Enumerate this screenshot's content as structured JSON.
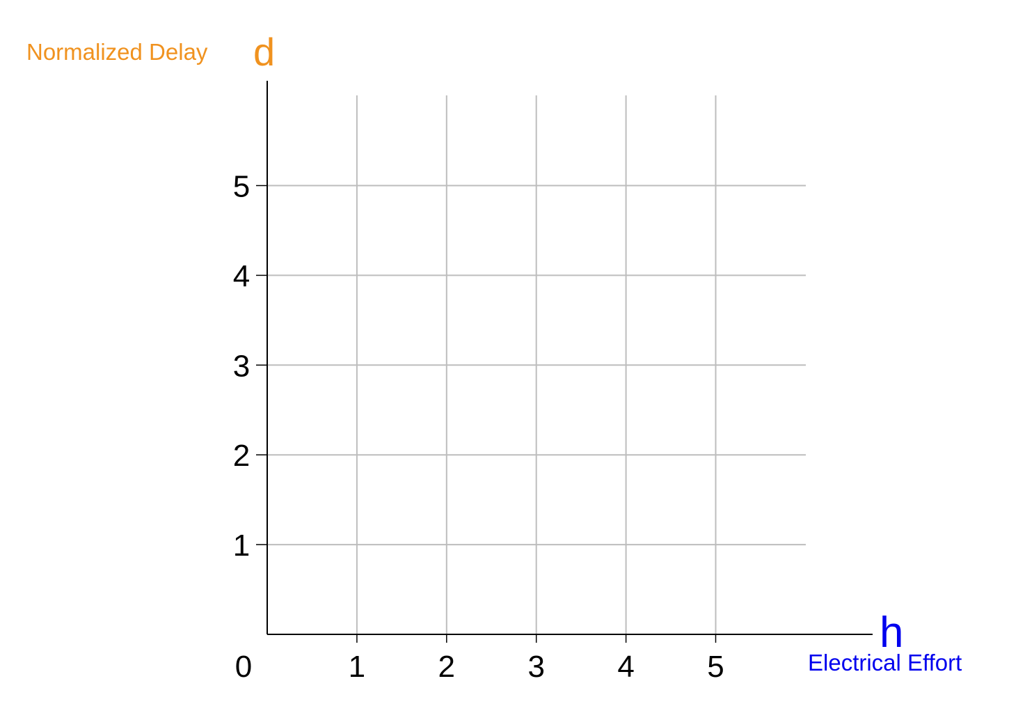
{
  "chart_data": {
    "type": "line",
    "title": "",
    "xlabel": "Electrical Effort",
    "xlabel_symbol": "h",
    "ylabel": "Normalized Delay",
    "ylabel_symbol": "d",
    "origin_label": "0",
    "x_ticks": [
      "1",
      "2",
      "3",
      "4",
      "5"
    ],
    "y_ticks": [
      "1",
      "2",
      "3",
      "4",
      "5"
    ],
    "xlim": [
      0,
      6.75
    ],
    "ylim": [
      0,
      6
    ],
    "grid": true,
    "series": [],
    "colors": {
      "ylabel": "#f0921f",
      "xlabel": "#0000ee",
      "grid": "#bdbdbd",
      "axis": "#000000"
    }
  }
}
